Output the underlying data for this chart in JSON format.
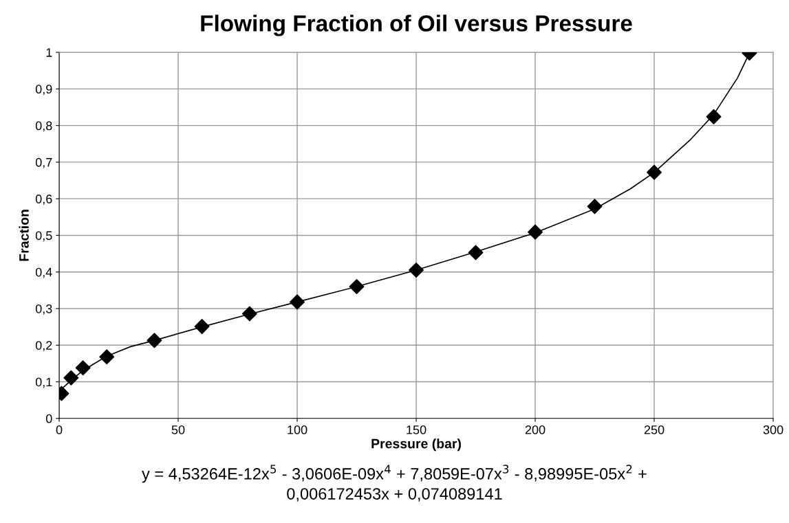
{
  "chart_data": {
    "type": "scatter",
    "title": "Flowing Fraction of Oil versus Pressure",
    "xlabel": "Pressure (bar)",
    "ylabel": "Fraction",
    "x": [
      1,
      5,
      10,
      20,
      40,
      60,
      80,
      100,
      125,
      150,
      175,
      200,
      225,
      250,
      275,
      290
    ],
    "series": [
      {
        "color": "#000000",
        "marker": "diamond",
        "values": [
          0.068,
          0.111,
          0.138,
          0.168,
          0.213,
          0.251,
          0.286,
          0.318,
          0.36,
          0.405,
          0.453,
          0.509,
          0.579,
          0.672,
          0.824,
          0.998
        ]
      },
      {
        "type": "line",
        "color": "#000000",
        "marker": "none",
        "line_style": "solid",
        "x": [
          1,
          5,
          10,
          20,
          30,
          40,
          60,
          80,
          100,
          125,
          150,
          175,
          200,
          225,
          240,
          250,
          265,
          275,
          285,
          290
        ],
        "values": [
          0.08,
          0.104,
          0.131,
          0.17,
          0.196,
          0.213,
          0.25,
          0.285,
          0.318,
          0.36,
          0.405,
          0.455,
          0.507,
          0.572,
          0.627,
          0.672,
          0.76,
          0.83,
          0.93,
          0.998
        ]
      }
    ],
    "xlim": [
      0,
      300
    ],
    "xticks": [
      0,
      50,
      100,
      150,
      200,
      250,
      300
    ],
    "ylim": [
      0,
      1
    ],
    "yticks": [
      0,
      {
        "value": 0.1,
        "label": "0,1"
      },
      {
        "value": 0.2,
        "label": "0,2"
      },
      {
        "value": 0.3,
        "label": "0,3"
      },
      {
        "value": 0.4,
        "label": "0,4"
      },
      {
        "value": 0.5,
        "label": "0,5"
      },
      {
        "value": 0.6,
        "label": "0,6"
      },
      {
        "value": 0.7,
        "label": "0,7"
      },
      {
        "value": 0.8,
        "label": "0,8"
      },
      {
        "value": 0.9,
        "label": "0,9"
      },
      1
    ],
    "grid": true,
    "annotations": [
      "y = 4,53264E-12x$^{5}$ - 3,0606E-09x$^{4}$ + 7,8059E-07x$^{3}$ - 8,98995E-05x$^{2}$ +\n0,006172453x + 0,074089141"
    ]
  }
}
